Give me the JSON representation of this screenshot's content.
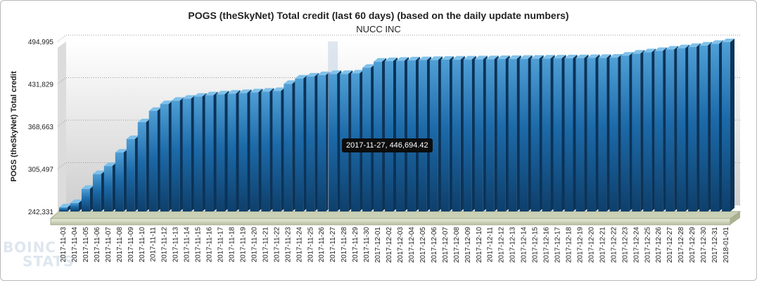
{
  "chart_data": {
    "type": "bar",
    "title": "POGS (theSkyNet) Total credit (last 60 days) (based on the daily update numbers)",
    "subtitle": "NUCC INC",
    "ylabel": "POGS (theSkyNet) Total credit",
    "xlabel": "",
    "ylim": [
      242331,
      494995
    ],
    "yticks": [
      "242,331",
      "305,497",
      "368,663",
      "431,829",
      "494,995"
    ],
    "grid": true,
    "legend": "none",
    "bar_color": "#1f77b4",
    "highlight_color": "#c8d6e6",
    "categories": [
      "2017-11-03",
      "2017-11-04",
      "2017-11-05",
      "2017-11-06",
      "2017-11-07",
      "2017-11-08",
      "2017-11-09",
      "2017-11-10",
      "2017-11-11",
      "2017-11-12",
      "2017-11-13",
      "2017-11-14",
      "2017-11-15",
      "2017-11-16",
      "2017-11-17",
      "2017-11-18",
      "2017-11-19",
      "2017-11-20",
      "2017-11-21",
      "2017-11-22",
      "2017-11-23",
      "2017-11-24",
      "2017-11-25",
      "2017-11-26",
      "2017-11-27",
      "2017-11-28",
      "2017-11-29",
      "2017-11-30",
      "2017-12-01",
      "2017-12-02",
      "2017-12-03",
      "2017-12-04",
      "2017-12-05",
      "2017-12-06",
      "2017-12-07",
      "2017-12-08",
      "2017-12-09",
      "2017-12-10",
      "2017-12-11",
      "2017-12-12",
      "2017-12-13",
      "2017-12-14",
      "2017-12-15",
      "2017-12-16",
      "2017-12-17",
      "2017-12-18",
      "2017-12-19",
      "2017-12-20",
      "2017-12-21",
      "2017-12-22",
      "2017-12-23",
      "2017-12-24",
      "2017-12-25",
      "2017-12-26",
      "2017-12-27",
      "2017-12-28",
      "2017-12-29",
      "2017-12-30",
      "2017-12-31",
      "2018-01-01"
    ],
    "series": [
      {
        "values": [
          248500,
          255000,
          276000,
          298000,
          310000,
          330000,
          350000,
          375000,
          392000,
          402000,
          407000,
          410000,
          413000,
          415000,
          416500,
          417500,
          418500,
          419500,
          420500,
          421500,
          432000,
          440000,
          443000,
          445000,
          446694.42,
          446800,
          447500,
          456000,
          465000,
          466000,
          466500,
          467000,
          467300,
          467600,
          467900,
          468100,
          468300,
          468500,
          468700,
          468900,
          469100,
          469300,
          469500,
          469700,
          469900,
          470100,
          470300,
          470500,
          470700,
          471000,
          474000,
          477000,
          479000,
          481000,
          483000,
          485000,
          487000,
          489000,
          491500,
          494000
        ]
      }
    ],
    "highlight": {
      "index": 24,
      "label": "2017-11-27, 446,694.42"
    }
  },
  "watermark": {
    "line1": "BOINC",
    "line2": "STATS"
  }
}
